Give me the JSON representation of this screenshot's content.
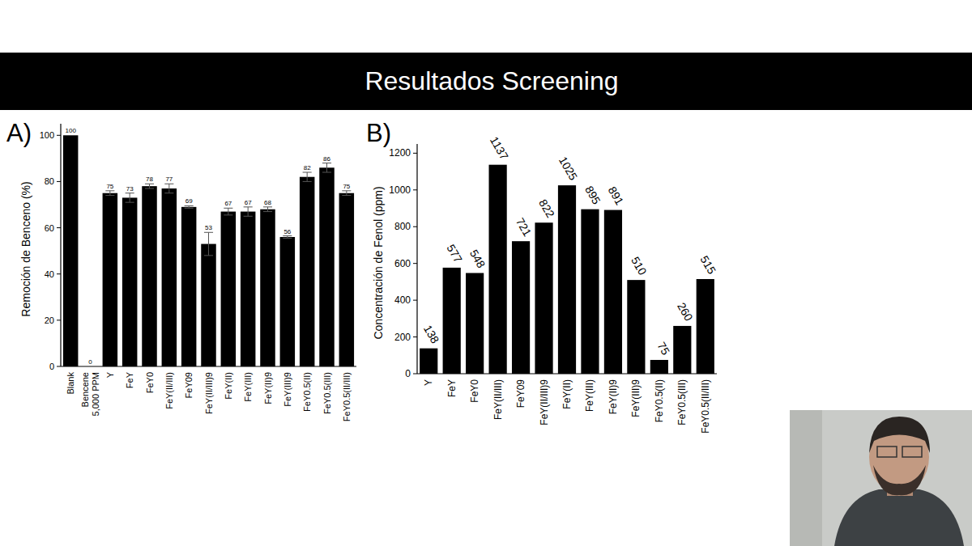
{
  "slide_title": "Resultados Screening",
  "chart_data": [
    {
      "type": "bar",
      "title": "A)",
      "y_label": "Remoción de Benceno (%)",
      "categories": [
        "Blank",
        "Bencene\n5,000 PPM",
        "Y",
        "FeY",
        "FeY0",
        "FeY(II/III)",
        "FeY09",
        "FeY(II/III)9",
        "FeY(II)",
        "FeY(III)",
        "FeY(II)9",
        "FeY(III)9",
        "FeY0.5(II)",
        "FeY0.5(III)",
        "FeY0.5(II/III)"
      ],
      "values": [
        100,
        0,
        75,
        73,
        78,
        77,
        69,
        53,
        67,
        67,
        68,
        56,
        82,
        86,
        75
      ],
      "errors": [
        0,
        0,
        1,
        2,
        1,
        2,
        0.5,
        5,
        1.5,
        2,
        1,
        0.5,
        2,
        2,
        1
      ],
      "color": "#000000",
      "ylim": [
        0,
        105
      ],
      "yticks": [
        0,
        20,
        40,
        60,
        80,
        100
      ],
      "grid": false,
      "data_labels": true
    },
    {
      "type": "bar",
      "title": "B)",
      "y_label": "Concentración de Fenol (ppm)",
      "categories": [
        "Y",
        "FeY",
        "FeY0",
        "FeY(II/III)",
        "FeY09",
        "FeY(II/III)9",
        "FeY(II)",
        "FeY(III)",
        "FeY(II)9",
        "FeY(III)9",
        "FeY0.5(II)",
        "FeY0.5(III)",
        "FeY0.5(II/III)"
      ],
      "values": [
        138,
        577,
        548,
        1137,
        721,
        822,
        1025,
        895,
        891,
        510,
        75,
        260,
        515
      ],
      "color": "#000000",
      "ylim": [
        0,
        1250
      ],
      "yticks": [
        0,
        200,
        400,
        600,
        800,
        1000,
        1200
      ],
      "grid": false,
      "data_labels": true
    }
  ]
}
